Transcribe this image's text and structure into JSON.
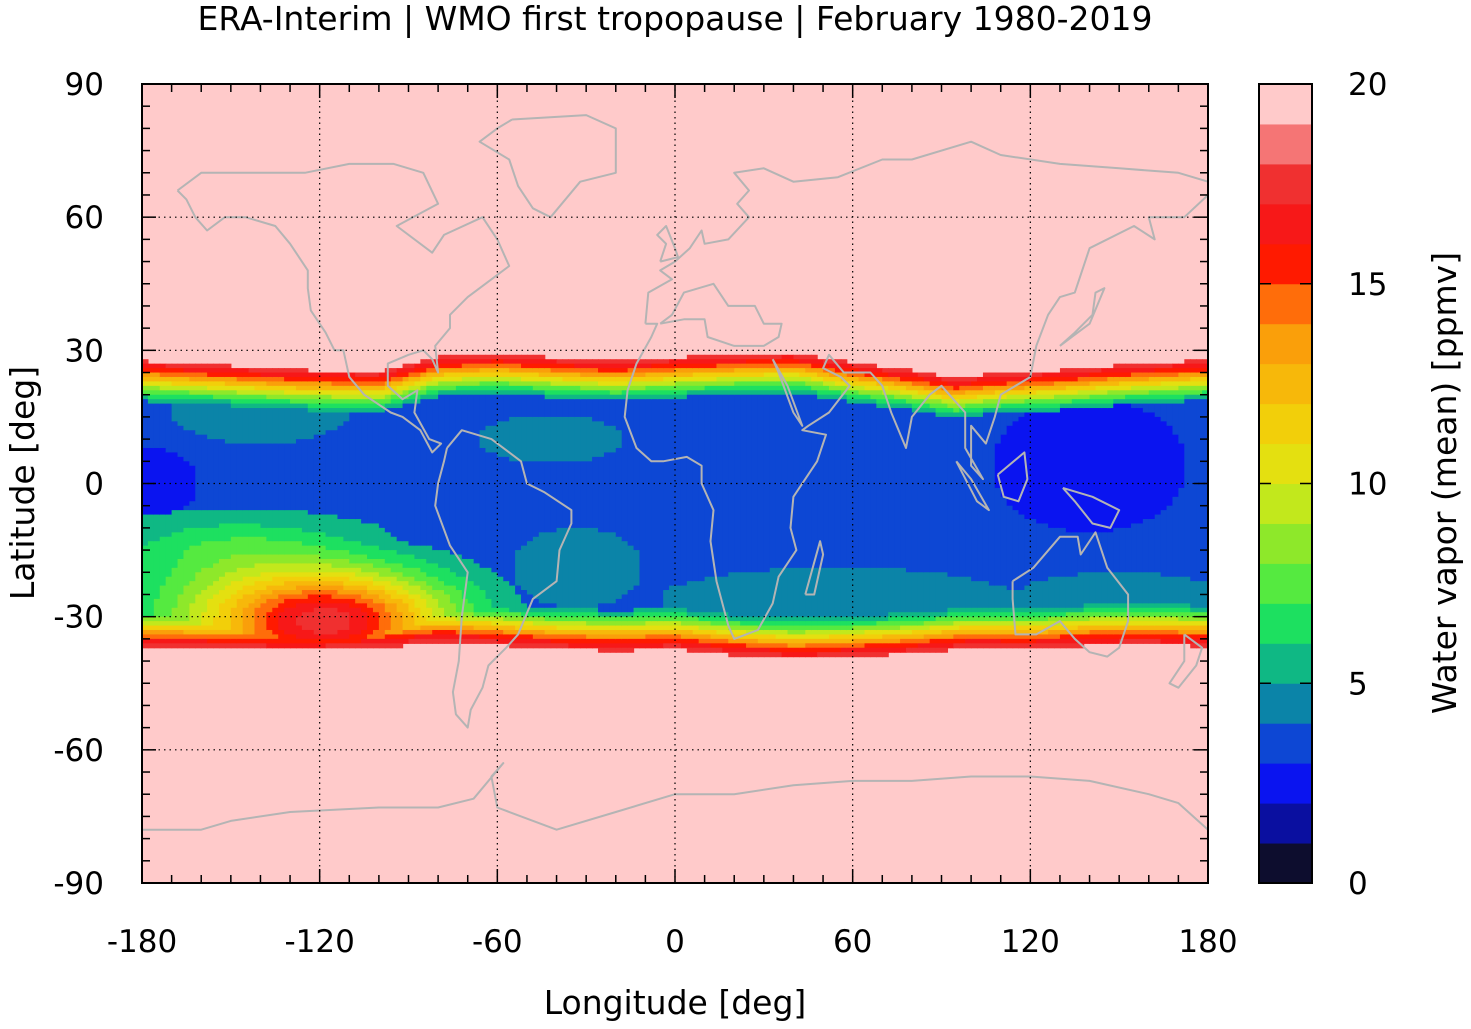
{
  "chart_data": {
    "type": "heatmap",
    "title": "ERA-Interim | WMO first tropopause | February 1980-2019",
    "xlabel": "Longitude [deg]",
    "ylabel": "Latitude [deg]",
    "xlim": [
      -180,
      180
    ],
    "ylim": [
      -90,
      90
    ],
    "x_ticks": [
      -180,
      -120,
      -60,
      0,
      60,
      120,
      180
    ],
    "y_ticks": [
      90,
      60,
      30,
      0,
      -30,
      -60,
      -90
    ],
    "x_tick_labels": [
      "-180",
      "-120",
      "-60",
      "0",
      "60",
      "120",
      "180"
    ],
    "y_tick_labels": [
      "90",
      "60",
      "30",
      "0",
      "-30",
      "-60",
      "-90"
    ],
    "grid": true,
    "background_value": 20,
    "colorbar": {
      "label": "Water vapor (mean) [ppmv]",
      "range": [
        0,
        20
      ],
      "ticks": [
        0,
        5,
        10,
        15,
        20
      ],
      "tick_labels": [
        "0",
        "5",
        "10",
        "15",
        "20"
      ],
      "levels": [
        {
          "min": 0,
          "max": 1,
          "color": "#0d0d2e"
        },
        {
          "min": 1,
          "max": 2,
          "color": "#0a0fa0"
        },
        {
          "min": 2,
          "max": 3,
          "color": "#0a14f0"
        },
        {
          "min": 3,
          "max": 4,
          "color": "#0d47d4"
        },
        {
          "min": 4,
          "max": 5,
          "color": "#0b84a8"
        },
        {
          "min": 5,
          "max": 6,
          "color": "#0fb884"
        },
        {
          "min": 6,
          "max": 7,
          "color": "#1de060"
        },
        {
          "min": 7,
          "max": 8,
          "color": "#55ea40"
        },
        {
          "min": 8,
          "max": 9,
          "color": "#8ee82a"
        },
        {
          "min": 9,
          "max": 10,
          "color": "#c2e81c"
        },
        {
          "min": 10,
          "max": 11,
          "color": "#e4e010"
        },
        {
          "min": 11,
          "max": 12,
          "color": "#f2cf0a"
        },
        {
          "min": 12,
          "max": 13,
          "color": "#f7b80a"
        },
        {
          "min": 13,
          "max": 14,
          "color": "#fa9f0a"
        },
        {
          "min": 14,
          "max": 15,
          "color": "#ff6d0a"
        },
        {
          "min": 15,
          "max": 16,
          "color": "#ff1a00"
        },
        {
          "min": 16,
          "max": 17,
          "color": "#f71818"
        },
        {
          "min": 17,
          "max": 18,
          "color": "#f03030"
        },
        {
          "min": 18,
          "max": 19,
          "color": "#f57575"
        },
        {
          "min": 19,
          "max": 20,
          "color": "#ffcaca"
        }
      ]
    }
  }
}
